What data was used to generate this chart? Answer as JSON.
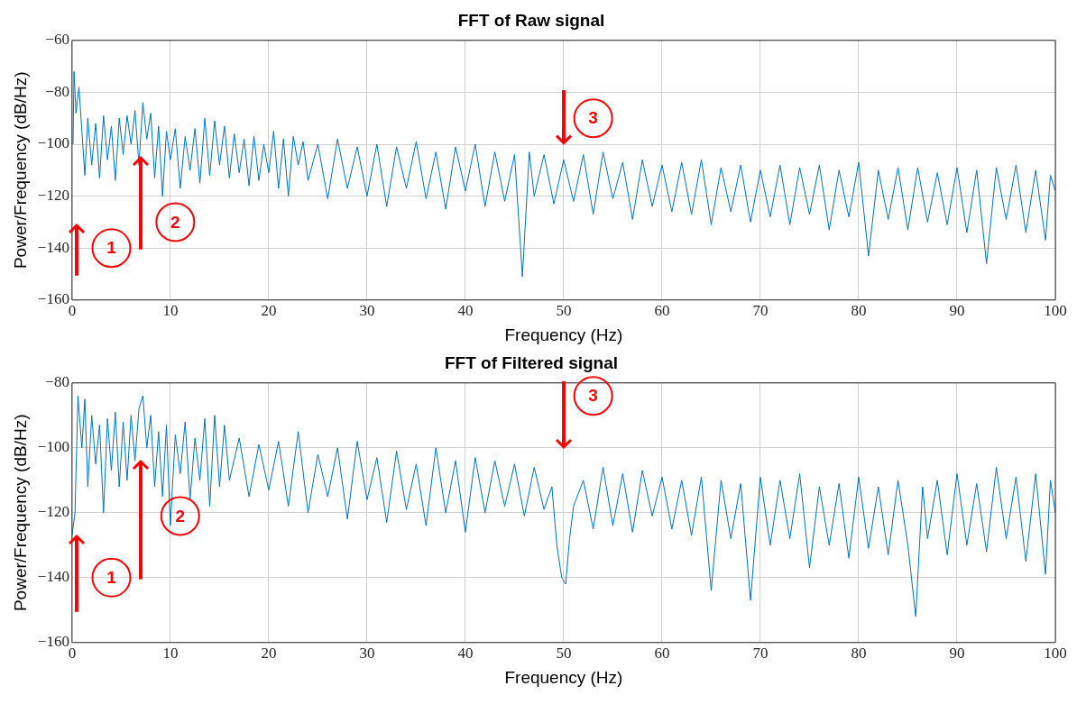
{
  "chart_data": [
    {
      "type": "line",
      "title": "FFT of Raw signal",
      "xlabel": "Frequency (Hz)",
      "ylabel": "Power/Frequency (dB/Hz)",
      "xlim": [
        0,
        100
      ],
      "xticks": [
        0,
        10,
        20,
        30,
        40,
        50,
        60,
        70,
        80,
        90,
        100
      ],
      "ylim": [
        -160,
        -60
      ],
      "yticks": [
        -160,
        -140,
        -120,
        -100,
        -80,
        -60
      ],
      "grid": true,
      "legend": false,
      "marker": "none",
      "line_style": "solid",
      "annotations": [
        {
          "text": "1",
          "x": 4,
          "y": -140
        },
        {
          "text": "2",
          "x": 10.5,
          "y": -130
        },
        {
          "text": "3",
          "x": 53,
          "y": -90
        }
      ],
      "series": [
        {
          "color": "#0072bd",
          "x": [
            0.1,
            0.2,
            0.4,
            0.7,
            1.0,
            1.3,
            1.6,
            2.0,
            2.4,
            2.8,
            3.2,
            3.6,
            4.0,
            4.4,
            4.8,
            5.2,
            5.6,
            6.0,
            6.4,
            6.8,
            7.2,
            7.6,
            8.0,
            8.4,
            8.8,
            9.2,
            9.6,
            10.0,
            10.5,
            11.0,
            11.5,
            12.0,
            12.5,
            13.0,
            13.5,
            14.0,
            14.5,
            15.0,
            15.5,
            16.0,
            16.5,
            17.0,
            17.5,
            18.0,
            18.5,
            19.0,
            19.5,
            20.0,
            20.5,
            21.0,
            21.5,
            22.0,
            22.5,
            23.0,
            23.5,
            24,
            25,
            26,
            27,
            28,
            29,
            30,
            31,
            32,
            33,
            34,
            35,
            36,
            37,
            38,
            39,
            40,
            41,
            42,
            43,
            44,
            45,
            45.8,
            46.5,
            47,
            48,
            49,
            50,
            51,
            52,
            53,
            54,
            55,
            56,
            57,
            58,
            59,
            60,
            61,
            62,
            63,
            64,
            65,
            66,
            67,
            68,
            69,
            70,
            71,
            72,
            73,
            74,
            75,
            76,
            77,
            78,
            79,
            80,
            81,
            82,
            83,
            84,
            85,
            86,
            87,
            88,
            89,
            90,
            91,
            92,
            93,
            94,
            95,
            96,
            97,
            98,
            99,
            99.5,
            100
          ],
          "values": [
            -100,
            -72,
            -88,
            -78,
            -95,
            -112,
            -90,
            -108,
            -92,
            -113,
            -89,
            -106,
            -93,
            -114,
            -90,
            -104,
            -89,
            -100,
            -87,
            -108,
            -84,
            -98,
            -88,
            -113,
            -93,
            -120,
            -95,
            -106,
            -94,
            -117,
            -97,
            -110,
            -94,
            -115,
            -90,
            -112,
            -91,
            -108,
            -93,
            -113,
            -96,
            -111,
            -98,
            -116,
            -97,
            -114,
            -100,
            -111,
            -95,
            -117,
            -98,
            -120,
            -97,
            -108,
            -99,
            -114,
            -100,
            -121,
            -98,
            -117,
            -101,
            -120,
            -100,
            -124,
            -101,
            -117,
            -99,
            -121,
            -103,
            -125,
            -101,
            -118,
            -100,
            -124,
            -103,
            -122,
            -104,
            -151,
            -103,
            -120,
            -104,
            -123,
            -106,
            -122,
            -104,
            -127,
            -103,
            -121,
            -107,
            -129,
            -106,
            -124,
            -108,
            -126,
            -107,
            -127,
            -106,
            -131,
            -109,
            -126,
            -108,
            -130,
            -110,
            -128,
            -108,
            -131,
            -109,
            -127,
            -108,
            -133,
            -110,
            -128,
            -107,
            -143,
            -110,
            -129,
            -109,
            -133,
            -109,
            -130,
            -111,
            -131,
            -109,
            -134,
            -110,
            -146,
            -109,
            -129,
            -108,
            -134,
            -110,
            -137,
            -112,
            -118
          ]
        }
      ]
    },
    {
      "type": "line",
      "title": "FFT of Filtered signal",
      "xlabel": "Frequency (Hz)",
      "ylabel": "Power/Frequency (dB/Hz)",
      "xlim": [
        0,
        100
      ],
      "xticks": [
        0,
        10,
        20,
        30,
        40,
        50,
        60,
        70,
        80,
        90,
        100
      ],
      "ylim": [
        -160,
        -80
      ],
      "yticks": [
        -160,
        -140,
        -120,
        -100,
        -80
      ],
      "grid": true,
      "legend": false,
      "marker": "none",
      "line_style": "solid",
      "annotations": [
        {
          "text": "1",
          "x": 4,
          "y": -140
        },
        {
          "text": "2",
          "x": 11,
          "y": -121
        },
        {
          "text": "3",
          "x": 53,
          "y": -84
        }
      ],
      "series": [
        {
          "color": "#0072bd",
          "x": [
            0,
            0.3,
            0.6,
            1.0,
            1.3,
            1.6,
            2.0,
            2.4,
            2.8,
            3.2,
            3.6,
            4.0,
            4.4,
            4.8,
            5.2,
            5.6,
            6.0,
            6.4,
            6.8,
            7.2,
            7.6,
            8.0,
            8.4,
            8.8,
            9.2,
            9.6,
            10.0,
            10.5,
            11,
            11.5,
            12,
            12.5,
            13,
            13.5,
            14,
            14.5,
            15,
            15.5,
            16,
            17,
            18,
            19,
            20,
            21,
            22,
            23,
            24,
            25,
            26,
            27,
            28,
            29,
            30,
            31,
            32,
            33,
            34,
            35,
            36,
            37,
            38,
            39,
            40,
            41,
            42,
            43,
            44,
            45,
            46,
            47,
            48,
            48.8,
            49.3,
            49.8,
            50.2,
            50.6,
            51,
            52,
            53,
            54,
            55,
            56,
            57,
            58,
            59,
            60,
            61,
            62,
            63,
            64,
            65,
            66,
            67,
            68,
            69,
            70,
            71,
            72,
            73,
            74,
            75,
            76,
            77,
            78,
            79,
            80,
            81,
            82,
            83,
            84,
            85,
            85.8,
            86.5,
            87,
            88,
            89,
            90,
            91,
            92,
            93,
            94,
            95,
            96,
            97,
            98,
            99,
            99.5,
            100
          ],
          "values": [
            -127,
            -120,
            -84,
            -100,
            -85,
            -112,
            -90,
            -105,
            -93,
            -120,
            -91,
            -107,
            -89,
            -112,
            -92,
            -110,
            -90,
            -104,
            -88,
            -84,
            -100,
            -90,
            -112,
            -95,
            -115,
            -93,
            -124,
            -96,
            -108,
            -92,
            -116,
            -97,
            -110,
            -91,
            -118,
            -90,
            -112,
            -93,
            -110,
            -97,
            -115,
            -99,
            -113,
            -98,
            -118,
            -95,
            -120,
            -102,
            -115,
            -100,
            -122,
            -98,
            -116,
            -103,
            -123,
            -101,
            -119,
            -105,
            -124,
            -100,
            -120,
            -104,
            -126,
            -103,
            -120,
            -104,
            -118,
            -105,
            -121,
            -106,
            -119,
            -112,
            -130,
            -140,
            -142,
            -128,
            -118,
            -110,
            -125,
            -106,
            -124,
            -108,
            -126,
            -107,
            -121,
            -109,
            -125,
            -110,
            -127,
            -109,
            -144,
            -110,
            -128,
            -111,
            -147,
            -109,
            -130,
            -110,
            -128,
            -108,
            -137,
            -112,
            -130,
            -111,
            -134,
            -109,
            -131,
            -112,
            -133,
            -110,
            -130,
            -152,
            -112,
            -128,
            -110,
            -133,
            -108,
            -130,
            -111,
            -132,
            -106,
            -128,
            -109,
            -135,
            -108,
            -139,
            -110,
            -120
          ]
        }
      ]
    }
  ]
}
